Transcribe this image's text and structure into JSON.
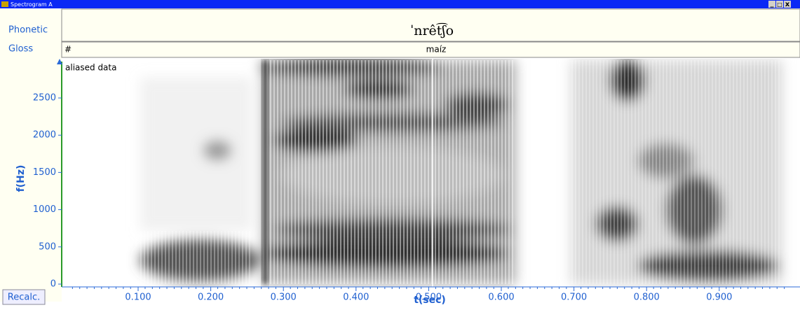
{
  "window": {
    "title": "Spectrogram A",
    "buttons": [
      "_",
      "□",
      "x"
    ]
  },
  "tiers": [
    {
      "label": "Phonetic",
      "text": "ˈnrêt͡ʃo"
    },
    {
      "label": "Gloss",
      "marker": "#",
      "text": "maíz"
    }
  ],
  "plot": {
    "note": "aliased data",
    "y_label": "f(Hz)",
    "y_ticks": [
      0,
      500,
      1000,
      1500,
      2000,
      2500
    ],
    "x_label": "t(sec)",
    "x_ticks": [
      "0.100",
      "0.200",
      "0.300",
      "0.400",
      "0.500",
      "0.600",
      "0.700",
      "0.800",
      "0.900"
    ]
  },
  "button": "Recalc."
}
